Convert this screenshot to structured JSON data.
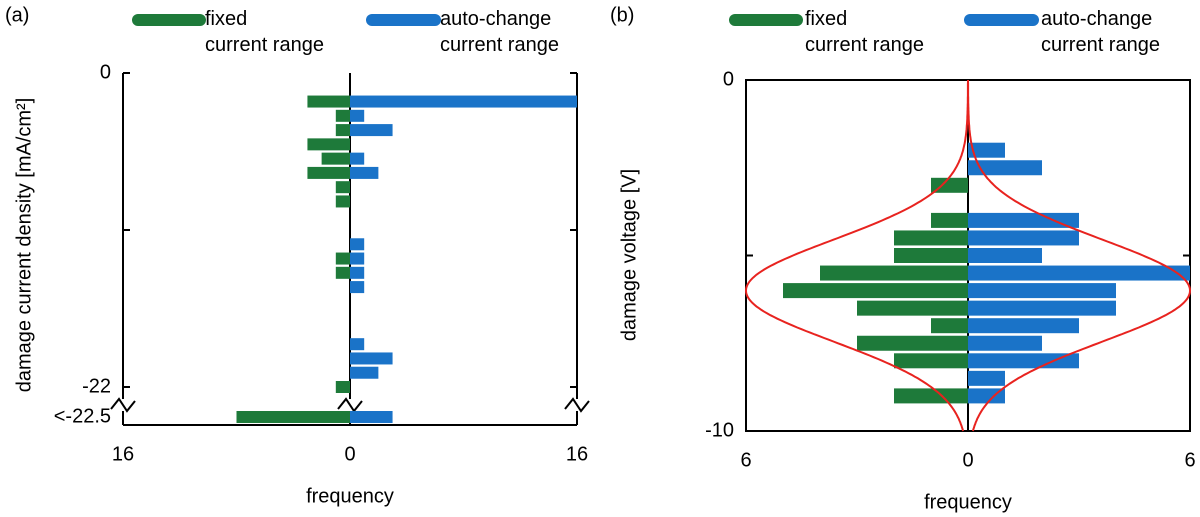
{
  "chart_data": [
    {
      "type": "bar",
      "orientation": "horizontal",
      "panel_label": "(a)",
      "ylabel": "damage current density [mA/cm²]",
      "xlabel": "frequency",
      "y": [
        -2,
        -3,
        -4,
        -5,
        -6,
        -7,
        -8,
        -9,
        -12,
        -13,
        -14,
        -15,
        -19,
        -20,
        -21,
        -22
      ],
      "ylim": [
        0,
        -22
      ],
      "yticks": [
        0,
        -22
      ],
      "minor_yticks": [
        -11
      ],
      "overflow_label": "<-22.5",
      "xlim": [
        -16,
        16
      ],
      "xticks": [
        {
          "value": -16,
          "label": "16"
        },
        0,
        16
      ],
      "series": [
        {
          "name": "fixed\ncurrent range",
          "color": "#1e7a3a",
          "side": "left",
          "values": [
            3,
            1,
            1,
            3,
            2,
            3,
            1,
            1,
            0,
            1,
            1,
            0,
            0,
            0,
            0,
            1
          ],
          "overflow_value": 8
        },
        {
          "name": "auto-change\ncurrent range",
          "color": "#1a73c8",
          "side": "right",
          "values": [
            16,
            1,
            3,
            0,
            1,
            2,
            0,
            0,
            1,
            1,
            1,
            1,
            1,
            3,
            2,
            0
          ],
          "overflow_value": 3
        }
      ]
    },
    {
      "type": "bar",
      "orientation": "horizontal",
      "panel_label": "(b)",
      "ylabel": "damage voltage [V]",
      "xlabel": "frequency",
      "y": [
        -2,
        -2.5,
        -3,
        -4,
        -4.5,
        -5,
        -5.5,
        -6,
        -6.5,
        -7,
        -7.5,
        -8,
        -8.5,
        -9
      ],
      "ylim": [
        0,
        -10
      ],
      "yticks": [
        0,
        -10
      ],
      "minor_yticks": [
        -5
      ],
      "xlim": [
        -6,
        6
      ],
      "xticks": [
        {
          "value": -6,
          "label": "6"
        },
        0,
        6
      ],
      "series": [
        {
          "name": "fixed\ncurrent range",
          "color": "#1e7a3a",
          "side": "left",
          "values": [
            0,
            0,
            1,
            1,
            2,
            2,
            4,
            5,
            3,
            1,
            3,
            2,
            0,
            2
          ]
        },
        {
          "name": "auto-change\ncurrent range",
          "color": "#1a73c8",
          "side": "right",
          "values": [
            1,
            2,
            0,
            3,
            3,
            2,
            6,
            4,
            4,
            3,
            2,
            3,
            1,
            1
          ]
        }
      ],
      "fit": {
        "color": "#e8231f",
        "mean": -6,
        "sigma": 1.45,
        "peak": 6
      }
    }
  ]
}
